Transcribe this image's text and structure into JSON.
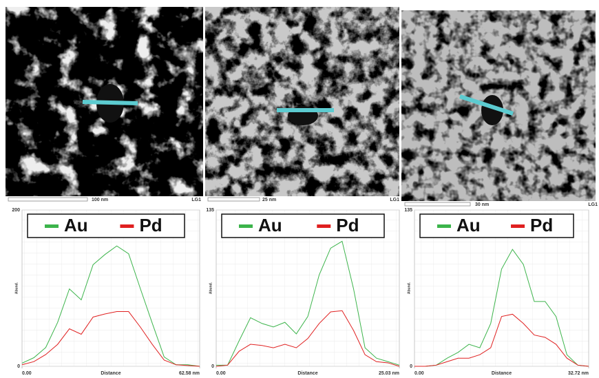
{
  "images": [
    {
      "scale": "100 nm",
      "label": "LG1"
    },
    {
      "scale": "25 nm",
      "label": "LG1"
    },
    {
      "scale": "30 nm",
      "label": "LG1"
    }
  ],
  "chart_data": [
    {
      "type": "line",
      "x_label": "Distance",
      "y_label": "Abund.",
      "x": [
        0,
        4.17,
        8.34,
        12.52,
        16.69,
        20.86,
        25.03,
        29.2,
        33.38,
        37.55,
        41.72,
        45.89,
        50.06,
        54.24,
        58.41,
        62.58
      ],
      "series": [
        {
          "name": "Au",
          "color": "#3cb44b",
          "values": [
            4,
            11,
            24,
            56,
            99,
            85,
            130,
            143,
            154,
            144,
            99,
            55,
            12,
            2,
            2,
            0
          ]
        },
        {
          "name": "Pd",
          "color": "#e02020",
          "values": [
            2,
            6,
            15,
            28,
            48,
            41,
            63,
            67,
            70,
            70,
            50,
            28,
            8,
            2,
            1,
            0
          ]
        }
      ],
      "xlim": [
        0,
        62.58
      ],
      "xticks": [
        {
          "value": 0,
          "label": "0.00"
        },
        {
          "value": 62.58,
          "label": "62.58 nm"
        }
      ],
      "ylim": [
        0,
        200
      ],
      "yticks": [
        0,
        200
      ],
      "grid": true
    },
    {
      "type": "line",
      "x_label": "Distance",
      "y_label": "Abund.",
      "x": [
        0,
        1.56,
        3.13,
        4.69,
        6.26,
        7.82,
        9.39,
        10.95,
        12.52,
        14.08,
        15.64,
        17.21,
        18.77,
        20.34,
        21.9,
        23.47,
        25.03
      ],
      "series": [
        {
          "name": "Au",
          "color": "#3cb44b",
          "values": [
            1,
            1,
            22,
            42,
            37,
            34,
            38,
            28,
            43,
            79,
            102,
            108,
            67,
            16,
            7,
            4,
            1
          ]
        },
        {
          "name": "Pd",
          "color": "#e02020",
          "values": [
            0,
            1,
            13,
            19,
            18,
            16,
            19,
            16,
            24,
            37,
            47,
            48,
            31,
            10,
            4,
            3,
            0
          ]
        }
      ],
      "xlim": [
        0,
        25.03
      ],
      "xticks": [
        {
          "value": 0,
          "label": "0.00"
        },
        {
          "value": 25.03,
          "label": "25.03 nm"
        }
      ],
      "ylim": [
        0,
        135
      ],
      "yticks": [
        0,
        135
      ],
      "grid": true
    },
    {
      "type": "line",
      "x_label": "Distance",
      "y_label": "Abund.",
      "x": [
        0,
        2.05,
        4.09,
        6.14,
        8.18,
        10.23,
        12.27,
        14.32,
        16.36,
        18.41,
        20.45,
        22.5,
        24.54,
        26.59,
        28.63,
        30.68,
        32.72
      ],
      "series": [
        {
          "name": "Au",
          "color": "#3cb44b",
          "values": [
            0,
            0,
            1,
            7,
            12,
            19,
            16,
            37,
            84,
            101,
            88,
            56,
            56,
            43,
            10,
            1,
            0
          ]
        },
        {
          "name": "Pd",
          "color": "#e02020",
          "values": [
            0,
            0,
            1,
            4,
            7,
            7,
            10,
            16,
            43,
            45,
            37,
            27,
            25,
            19,
            7,
            1,
            0
          ]
        }
      ],
      "xlim": [
        0,
        32.72
      ],
      "xticks": [
        {
          "value": 0,
          "label": "0.00"
        },
        {
          "value": 32.72,
          "label": "32.72 nm"
        }
      ],
      "ylim": [
        0,
        135
      ],
      "yticks": [
        0,
        135
      ],
      "grid": true
    }
  ]
}
